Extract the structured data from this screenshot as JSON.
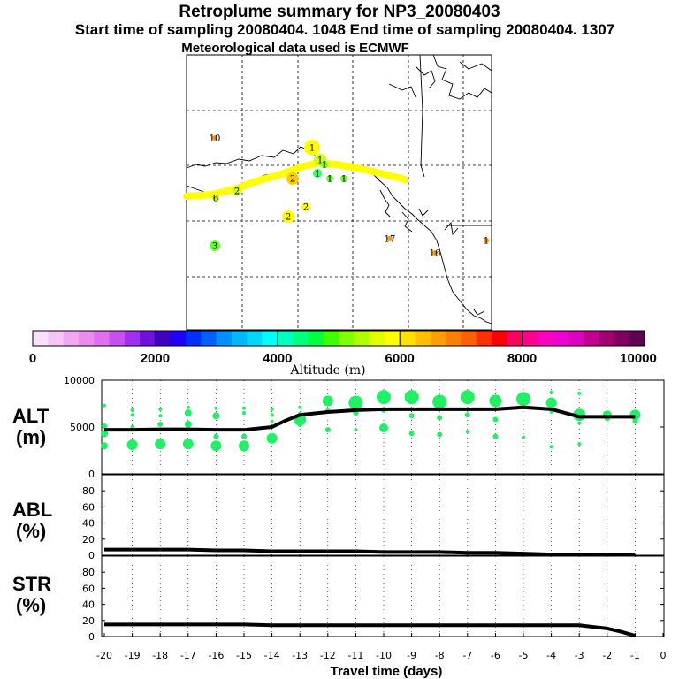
{
  "titles": {
    "main": "Retroplume summary for NP3_20080403",
    "line2": "Start time of sampling 20080404.  1048     End time of sampling 20080404.  1307",
    "line3": "Meteorological data used is ECMWF"
  },
  "map": {
    "labels": [
      {
        "text": "10",
        "color": "#ff9900"
      },
      {
        "text": "1",
        "color": "#ffff00"
      },
      {
        "text": "1",
        "color": "#ccff00"
      },
      {
        "text": "1",
        "color": "#66ff33"
      },
      {
        "text": "1",
        "color": "#33ff66"
      },
      {
        "text": "1",
        "color": "#66ff33"
      },
      {
        "text": "1",
        "color": "#66ff33"
      },
      {
        "text": "2",
        "color": "#ffcc00"
      },
      {
        "text": "2",
        "color": "#ffff00"
      },
      {
        "text": "2",
        "color": "#ccff00"
      },
      {
        "text": "2",
        "color": "#ffff00"
      },
      {
        "text": "3",
        "color": "#66ff33"
      },
      {
        "text": "6",
        "color": "#ccff00"
      },
      {
        "text": "17",
        "color": "#ff9900"
      },
      {
        "text": "16",
        "color": "#ff9900"
      },
      {
        "text": "1",
        "color": "#ff9900"
      }
    ]
  },
  "colorbar": {
    "title": "Altitude (m)",
    "ticks": [
      "0",
      "2000",
      "4000",
      "6000",
      "8000",
      "10000"
    ],
    "colors": [
      "#fbe0fb",
      "#f6c4f6",
      "#f0a8f0",
      "#eb8ceb",
      "#e070f0",
      "#c850f0",
      "#a030f0",
      "#7010e0",
      "#4000c0",
      "#2000ff",
      "#0030ff",
      "#0060ff",
      "#0090ff",
      "#00b8ff",
      "#00d8ff",
      "#00ffff",
      "#00ffc0",
      "#00ff80",
      "#00ff40",
      "#40ff00",
      "#80ff00",
      "#b0ff00",
      "#e0ff00",
      "#ffff00",
      "#ffe000",
      "#ffc000",
      "#ffa000",
      "#ff8000",
      "#ff6000",
      "#ff3000",
      "#ff0000",
      "#ff0060",
      "#ff0090",
      "#ff00c0",
      "#f000d0",
      "#e000c0",
      "#c00090",
      "#a00070",
      "#800060",
      "#600050"
    ]
  },
  "chart_data": [
    {
      "type": "line",
      "panel": "ALT",
      "ylabel_line1": "ALT",
      "ylabel_line2": "(m)",
      "ylim": [
        0,
        10000
      ],
      "yticks": [
        "10000",
        "5000",
        "0"
      ],
      "x": [
        -20,
        -19,
        -18,
        -17,
        -16,
        -15,
        -14,
        -13.5,
        -13,
        -12,
        -11,
        -10,
        -9,
        -8,
        -7,
        -6,
        -5,
        -4,
        -3,
        -2,
        -1
      ],
      "median": [
        4700,
        4700,
        4750,
        4750,
        4700,
        4700,
        5000,
        5700,
        6300,
        6600,
        6800,
        6900,
        6900,
        6900,
        6900,
        6900,
        7100,
        6900,
        6100,
        6100,
        6100
      ],
      "scatter_color": "#22ee66",
      "scatter": [
        {
          "x": -20,
          "y": 7300,
          "s": 2
        },
        {
          "x": -20,
          "y": 5100,
          "s": 3
        },
        {
          "x": -20,
          "y": 4300,
          "s": 4
        },
        {
          "x": -20,
          "y": 3000,
          "s": 4
        },
        {
          "x": -19,
          "y": 6800,
          "s": 2
        },
        {
          "x": -19,
          "y": 6300,
          "s": 2
        },
        {
          "x": -19,
          "y": 5000,
          "s": 2
        },
        {
          "x": -19,
          "y": 3100,
          "s": 6
        },
        {
          "x": -18,
          "y": 6900,
          "s": 2
        },
        {
          "x": -18,
          "y": 6200,
          "s": 2
        },
        {
          "x": -18,
          "y": 5300,
          "s": 3
        },
        {
          "x": -18,
          "y": 3200,
          "s": 6
        },
        {
          "x": -17,
          "y": 7100,
          "s": 2
        },
        {
          "x": -17,
          "y": 6500,
          "s": 4
        },
        {
          "x": -17,
          "y": 5300,
          "s": 4
        },
        {
          "x": -17,
          "y": 3200,
          "s": 6
        },
        {
          "x": -16,
          "y": 7000,
          "s": 2
        },
        {
          "x": -16,
          "y": 6200,
          "s": 4
        },
        {
          "x": -16,
          "y": 4000,
          "s": 3
        },
        {
          "x": -16,
          "y": 3000,
          "s": 6
        },
        {
          "x": -15,
          "y": 7000,
          "s": 2
        },
        {
          "x": -15,
          "y": 6500,
          "s": 2
        },
        {
          "x": -15,
          "y": 4000,
          "s": 3
        },
        {
          "x": -15,
          "y": 3000,
          "s": 6
        },
        {
          "x": -14,
          "y": 6900,
          "s": 2
        },
        {
          "x": -14,
          "y": 6300,
          "s": 2
        },
        {
          "x": -14,
          "y": 5600,
          "s": 2
        },
        {
          "x": -14,
          "y": 3800,
          "s": 6
        },
        {
          "x": -13,
          "y": 7100,
          "s": 2
        },
        {
          "x": -13,
          "y": 6400,
          "s": 2
        },
        {
          "x": -13,
          "y": 5800,
          "s": 7
        },
        {
          "x": -13,
          "y": 5300,
          "s": 3
        },
        {
          "x": -12,
          "y": 7800,
          "s": 6
        },
        {
          "x": -12,
          "y": 6700,
          "s": 3
        },
        {
          "x": -12,
          "y": 4700,
          "s": 3
        },
        {
          "x": -11,
          "y": 7600,
          "s": 8
        },
        {
          "x": -11,
          "y": 6500,
          "s": 3
        },
        {
          "x": -11,
          "y": 4700,
          "s": 2
        },
        {
          "x": -10,
          "y": 8200,
          "s": 8
        },
        {
          "x": -10,
          "y": 6800,
          "s": 3
        },
        {
          "x": -10,
          "y": 4900,
          "s": 5
        },
        {
          "x": -9,
          "y": 8200,
          "s": 8
        },
        {
          "x": -9,
          "y": 6200,
          "s": 3
        },
        {
          "x": -9,
          "y": 4300,
          "s": 3
        },
        {
          "x": -8,
          "y": 7700,
          "s": 8
        },
        {
          "x": -8,
          "y": 6000,
          "s": 3
        },
        {
          "x": -8,
          "y": 4200,
          "s": 3
        },
        {
          "x": -7,
          "y": 8200,
          "s": 8
        },
        {
          "x": -7,
          "y": 6300,
          "s": 3
        },
        {
          "x": -7,
          "y": 4500,
          "s": 2
        },
        {
          "x": -6,
          "y": 7800,
          "s": 7
        },
        {
          "x": -6,
          "y": 5800,
          "s": 3
        },
        {
          "x": -6,
          "y": 4000,
          "s": 3
        },
        {
          "x": -5,
          "y": 8000,
          "s": 8
        },
        {
          "x": -5,
          "y": 7200,
          "s": 3
        },
        {
          "x": -5,
          "y": 3900,
          "s": 2
        },
        {
          "x": -4,
          "y": 8700,
          "s": 2
        },
        {
          "x": -4,
          "y": 7600,
          "s": 6
        },
        {
          "x": -4,
          "y": 6600,
          "s": 2
        },
        {
          "x": -4,
          "y": 2900,
          "s": 2
        },
        {
          "x": -3,
          "y": 8600,
          "s": 2
        },
        {
          "x": -3,
          "y": 6300,
          "s": 7
        },
        {
          "x": -3,
          "y": 5400,
          "s": 2
        },
        {
          "x": -3,
          "y": 3200,
          "s": 2
        },
        {
          "x": -2,
          "y": 6300,
          "s": 5
        },
        {
          "x": -2,
          "y": 5900,
          "s": 3
        },
        {
          "x": -1,
          "y": 6300,
          "s": 6
        },
        {
          "x": -1,
          "y": 5600,
          "s": 3
        }
      ]
    },
    {
      "type": "line",
      "panel": "ABL",
      "ylabel_line1": "ABL",
      "ylabel_line2": "(%)",
      "ylim": [
        0,
        100
      ],
      "yticks": [
        "80",
        "60",
        "40",
        "20",
        "0"
      ],
      "x": [
        -20,
        -19,
        -18,
        -17,
        -16,
        -15,
        -14,
        -13,
        -12,
        -11,
        -10,
        -9,
        -8,
        -7,
        -6,
        -5,
        -4,
        -3,
        -2,
        -1
      ],
      "values": [
        7,
        7,
        7,
        7,
        6,
        6,
        5,
        5,
        5,
        5,
        4,
        4,
        4,
        3,
        3,
        2,
        1,
        1,
        0.5,
        0
      ]
    },
    {
      "type": "line",
      "panel": "STR",
      "ylabel_line1": "STR",
      "ylabel_line2": "(%)",
      "ylim": [
        0,
        100
      ],
      "yticks": [
        "80",
        "60",
        "40",
        "20",
        "0"
      ],
      "x": [
        -20,
        -19,
        -18,
        -17,
        -16,
        -15,
        -14,
        -13,
        -12,
        -11,
        -10,
        -9,
        -8,
        -7,
        -6,
        -5,
        -4,
        -3,
        -2.5,
        -2,
        -1.5,
        -1
      ],
      "values": [
        15,
        15,
        15,
        15,
        15,
        15,
        14,
        14,
        14,
        14,
        14,
        14,
        14,
        14,
        14,
        14,
        14,
        14,
        12,
        10,
        6,
        1
      ]
    }
  ],
  "xaxis": {
    "title": "Travel time (days)",
    "ticks": [
      "-20",
      "-19",
      "-18",
      "-17",
      "-16",
      "-15",
      "-14",
      "-13",
      "-12",
      "-11",
      "-10",
      "-9",
      "-8",
      "-7",
      "-6",
      "-5",
      "-4",
      "-3",
      "-2",
      "-1",
      "0"
    ]
  }
}
